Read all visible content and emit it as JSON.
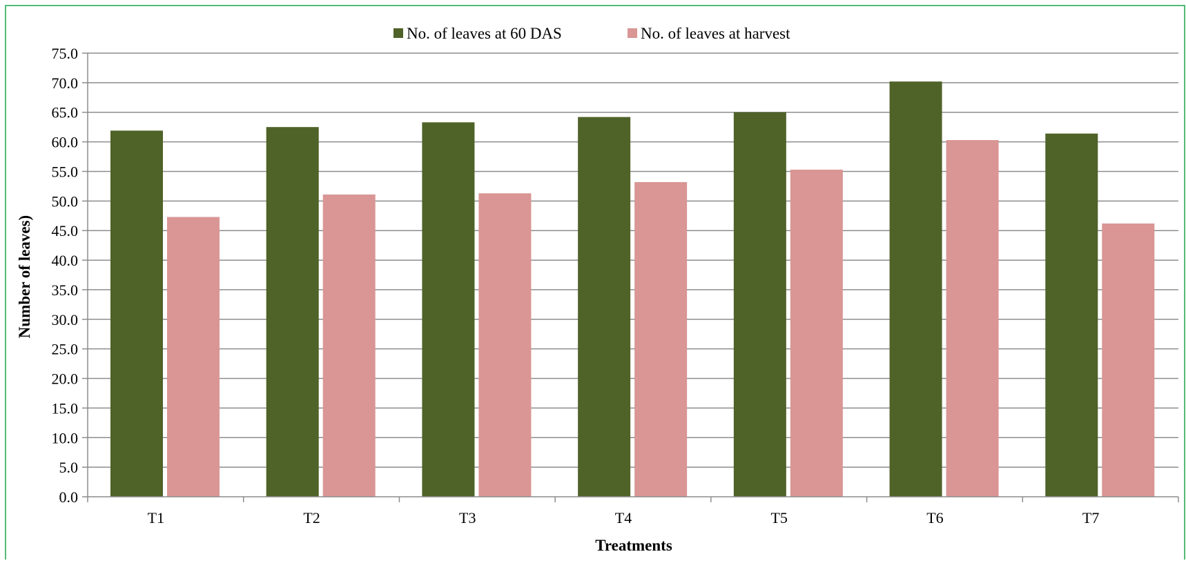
{
  "chart_data": {
    "type": "bar",
    "title": "",
    "xlabel": "Treatments",
    "ylabel": "Number  of  leaves)",
    "categories": [
      "T1",
      "T2",
      "T3",
      "T4",
      "T5",
      "T6",
      "T7"
    ],
    "series": [
      {
        "name": "No. of leaves at 60 DAS",
        "color": "#4f6228",
        "values": [
          61.9,
          62.5,
          63.3,
          64.2,
          65.0,
          70.2,
          61.4
        ]
      },
      {
        "name": "No. of leaves at harvest",
        "color": "#d99694",
        "values": [
          47.3,
          51.1,
          51.3,
          53.2,
          55.3,
          60.3,
          46.2
        ]
      }
    ],
    "ylim": [
      0,
      75
    ],
    "ytick_step": 5,
    "ytick_format_decimals": 1,
    "grid": true,
    "legend_position": "top-center",
    "frame_color": "#1aa34a",
    "grid_color": "#8c8c8c",
    "axis_color": "#8c8c8c"
  }
}
